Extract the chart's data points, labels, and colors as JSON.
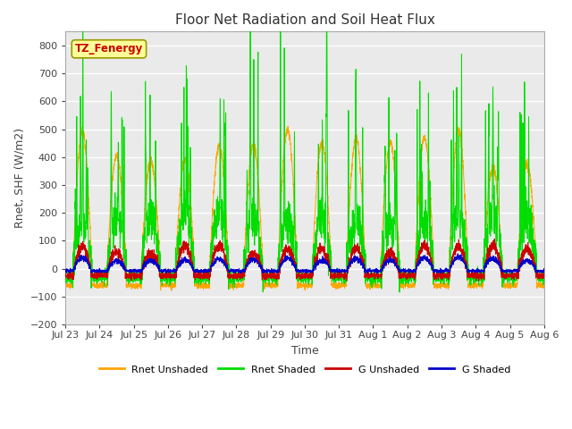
{
  "title": "Floor Net Radiation and Soil Heat Flux",
  "xlabel": "Time",
  "ylabel": "Rnet, SHF (W/m2)",
  "ylim": [
    -200,
    850
  ],
  "yticks": [
    -200,
    -100,
    0,
    100,
    200,
    300,
    400,
    500,
    600,
    700,
    800
  ],
  "colors": {
    "rnet_unshaded": "#FFA500",
    "rnet_shaded": "#00DD00",
    "g_unshaded": "#CC0000",
    "g_shaded": "#0000CC"
  },
  "legend_label_rnet_unshaded": "Rnet Unshaded",
  "legend_label_rnet_shaded": "Rnet Shaded",
  "legend_label_g_unshaded": "G Unshaded",
  "legend_label_g_shaded": "G Shaded",
  "annotation_text": "TZ_Fenergy",
  "annotation_color": "#CC0000",
  "annotation_bg": "#FFFF99",
  "annotation_edge": "#999900",
  "background_color": "#EAEAEA",
  "grid_color": "#FFFFFF",
  "num_days": 14,
  "tick_labels": [
    "Jul 23",
    "Jul 24",
    "Jul 25",
    "Jul 26",
    "Jul 27",
    "Jul 28",
    "Jul 29",
    "Jul 30",
    "Jul 31",
    "Aug 1",
    "Aug 2",
    "Aug 3",
    "Aug 4",
    "Aug 5",
    "Aug 6"
  ]
}
